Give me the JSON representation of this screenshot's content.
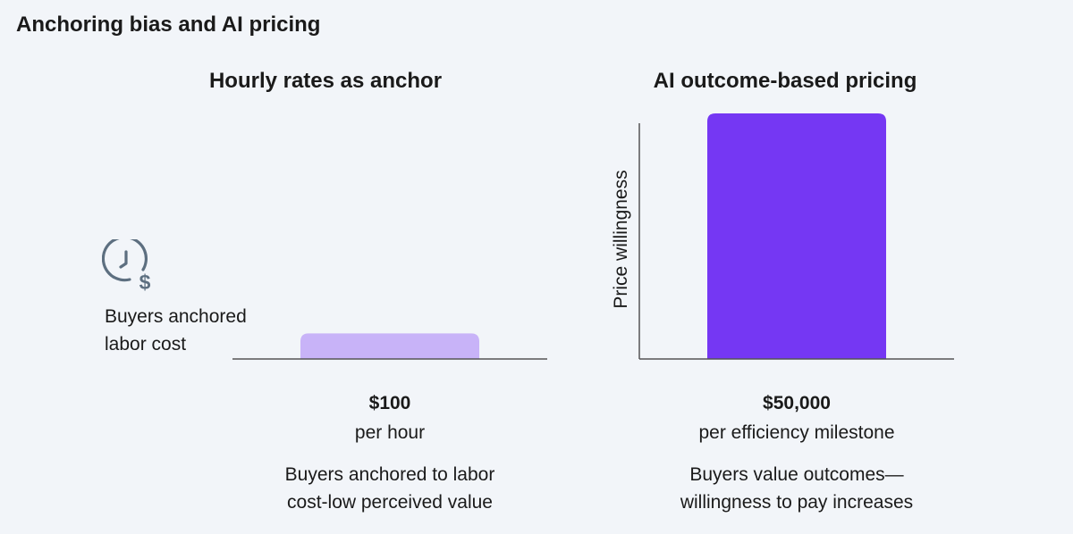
{
  "page": {
    "title": "Anchoring bias and AI pricing"
  },
  "chart_data": [
    {
      "type": "bar",
      "title": "Hourly rates as anchor",
      "categories": [
        "$100"
      ],
      "values": [
        5200
      ],
      "ylim": [
        0,
        50000
      ],
      "bar_color": "#c8b3f8",
      "value_label": "$100",
      "unit_label": "per hour",
      "description": [
        "Buyers anchored to labor",
        "cost-low perceived value"
      ],
      "annotation": {
        "icon": "clock-dollar-icon",
        "text": [
          "Buyers anchored",
          "labor cost"
        ]
      }
    },
    {
      "type": "bar",
      "title": "AI outcome-based pricing",
      "categories": [
        "$50,000"
      ],
      "values": [
        50000
      ],
      "ylim": [
        0,
        50000
      ],
      "ylabel": "Price willingness",
      "bar_color": "#7537f3",
      "value_label": "$50,000",
      "unit_label": "per efficiency milestone",
      "description": [
        "Buyers value outcomes—",
        "willingness to pay increases"
      ]
    }
  ],
  "colors": {
    "background": "#f2f5f9",
    "axis": "#555555",
    "icon": "#5d6f80"
  }
}
